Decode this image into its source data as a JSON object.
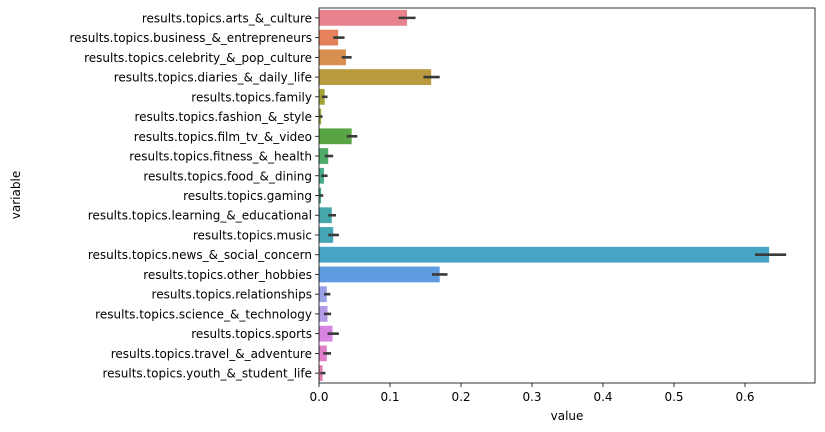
{
  "chart_data": {
    "type": "bar",
    "orientation": "horizontal",
    "title": "",
    "xlabel": "value",
    "ylabel": "variable",
    "xlim": [
      0,
      0.69
    ],
    "xticks": [
      "0.0",
      "0.1",
      "0.2",
      "0.3",
      "0.4",
      "0.5",
      "0.6"
    ],
    "grid": false,
    "categories": [
      "results.topics.arts_&_culture",
      "results.topics.business_&_entrepreneurs",
      "results.topics.celebrity_&_pop_culture",
      "results.topics.diaries_&_daily_life",
      "results.topics.family",
      "results.topics.fashion_&_style",
      "results.topics.film_tv_&_video",
      "results.topics.fitness_&_health",
      "results.topics.food_&_dining",
      "results.topics.gaming",
      "results.topics.learning_&_educational",
      "results.topics.music",
      "results.topics.news_&_social_concern",
      "results.topics.other_hobbies",
      "results.topics.relationships",
      "results.topics.science_&_technology",
      "results.topics.sports",
      "results.topics.travel_&_adventure",
      "results.topics.youth_&_student_life"
    ],
    "values": [
      0.124,
      0.027,
      0.038,
      0.158,
      0.008,
      0.003,
      0.046,
      0.013,
      0.007,
      0.003,
      0.018,
      0.02,
      0.634,
      0.17,
      0.011,
      0.012,
      0.019,
      0.011,
      0.005
    ],
    "error_low": [
      0.112,
      0.02,
      0.032,
      0.147,
      0.004,
      0.001,
      0.039,
      0.008,
      0.003,
      0.001,
      0.013,
      0.013,
      0.614,
      0.159,
      0.007,
      0.007,
      0.012,
      0.006,
      0.002
    ],
    "error_high": [
      0.136,
      0.036,
      0.046,
      0.17,
      0.012,
      0.005,
      0.054,
      0.02,
      0.012,
      0.006,
      0.024,
      0.028,
      0.658,
      0.181,
      0.016,
      0.017,
      0.028,
      0.017,
      0.009
    ],
    "colors": [
      "#e8828d",
      "#e5825c",
      "#d79050",
      "#b99a3f",
      "#a5a238",
      "#8fa83a",
      "#5aa543",
      "#4fac68",
      "#4cab89",
      "#4aa99b",
      "#45a7a9",
      "#45a7b6",
      "#46a5c5",
      "#5e9bdf",
      "#9aa1e7",
      "#b39ae6",
      "#d783e2",
      "#e07ec9",
      "#e17eb0"
    ],
    "errorbar_color": "#3a3a3a"
  }
}
